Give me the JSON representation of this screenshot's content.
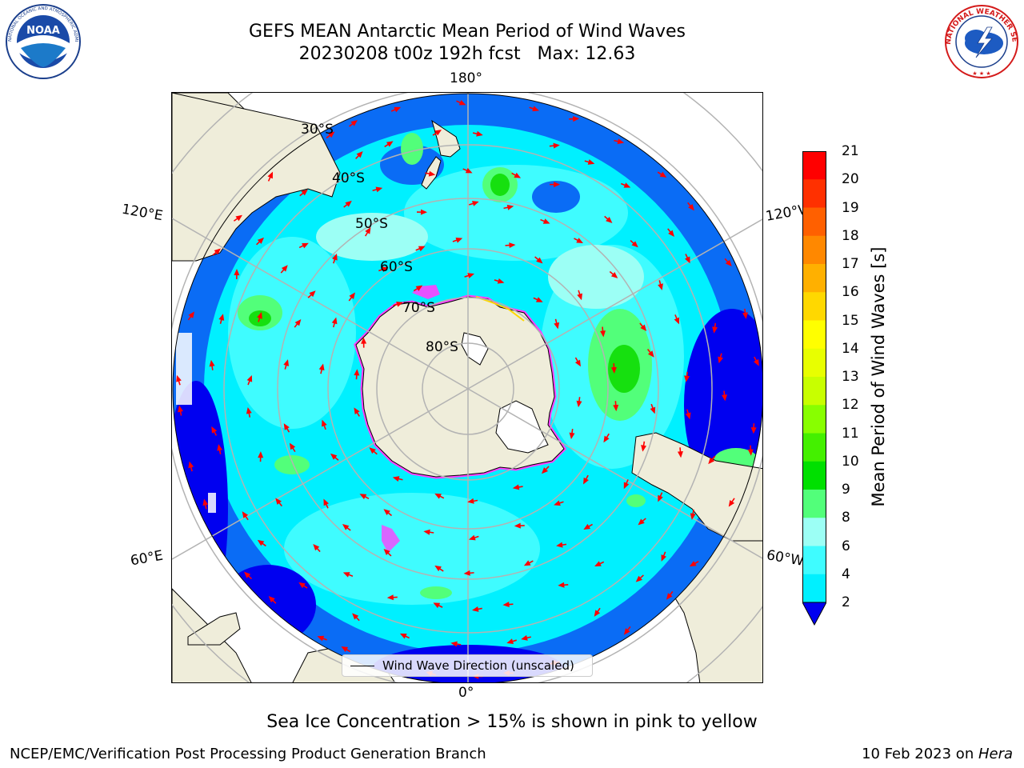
{
  "title": {
    "line1": "GEFS MEAN Antarctic Mean Period of Wind Waves",
    "line2": "20230208 t00z 192h fcst   Max: 12.63"
  },
  "logos": {
    "left": "noaa-logo",
    "right": "national-weather-service-logo"
  },
  "map": {
    "projection": "south-polar-stereographic",
    "longitude_labels": {
      "top": "180°",
      "bottom": "0°",
      "left_upper": "120°E",
      "left_lower": "60°E",
      "right_upper": "120°W",
      "right_lower": "60°W"
    },
    "latitude_labels": [
      "30°S",
      "40°S",
      "50°S",
      "60°S",
      "70°S",
      "80°S"
    ],
    "legend_label": "Wind Wave Direction (unscaled)",
    "colors": {
      "land": "#efedda",
      "ocean_2_4": "#0a6cf5",
      "ocean_4_6": "#00f0ff",
      "ocean_6_8": "#3ffcff",
      "ocean_8_9": "#9cfff5",
      "ocean_9_10": "#52ff7a",
      "ocean_10_11": "#16e00f",
      "deep_lt2": "#0000f0",
      "arrow": "#ff0000",
      "sea_ice": "#ff40ff",
      "grid": "#b3b3b3"
    }
  },
  "colorbar": {
    "label": "Mean Period of Wind Waves [s]",
    "ticks": [
      "21",
      "20",
      "19",
      "18",
      "17",
      "16",
      "15",
      "14",
      "13",
      "12",
      "11",
      "10",
      "9",
      "8",
      "6",
      "4",
      "2"
    ],
    "colors": [
      "#ff0000",
      "#ff3000",
      "#ff6000",
      "#ff8800",
      "#ffb000",
      "#ffd800",
      "#ffff00",
      "#e8ff00",
      "#c8ff00",
      "#88ff00",
      "#44f000",
      "#00e000",
      "#52ff7a",
      "#9cfff5",
      "#3ffcff",
      "#00f0ff",
      "#0a6cf5"
    ],
    "extend_color": "#0000f0"
  },
  "caption": "Sea Ice Concentration > 15% is shown in pink to yellow",
  "footer": {
    "left": "NCEP/EMC/Verification Post Processing Product Generation Branch",
    "right_date": "10 Feb 2023 on ",
    "right_host": "Hera"
  }
}
